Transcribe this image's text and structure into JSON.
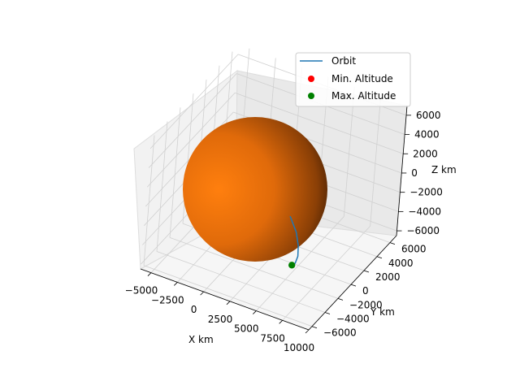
{
  "chart_data": {
    "type": "3d-line",
    "title": "",
    "xlabel": "X km",
    "ylabel": "Y km",
    "zlabel": "Z km",
    "xlim": [
      -6000,
      10000
    ],
    "ylim": [
      -6500,
      7000
    ],
    "zlim": [
      -6500,
      7000
    ],
    "xticks": [
      -5000,
      -2500,
      0,
      2500,
      5000,
      7500,
      10000
    ],
    "yticks": [
      -6000,
      -4000,
      -2000,
      0,
      2000,
      4000,
      6000
    ],
    "zticks": [
      -6000,
      -4000,
      -2000,
      0,
      2000,
      4000,
      6000
    ],
    "xtick_labels": [
      "−5000",
      "−2500",
      "0",
      "2500",
      "5000",
      "7500",
      "10000"
    ],
    "ytick_labels": [
      "−6000",
      "−4000",
      "−2000",
      "0",
      "2000",
      "4000",
      "6000"
    ],
    "ztick_labels": [
      "−6000",
      "−4000",
      "−2000",
      "0",
      "2000",
      "4000",
      "6000"
    ],
    "grid": true,
    "legend_position": "upper-right",
    "legend": [
      {
        "label": "Orbit",
        "marker": "line",
        "color": "#1f77b4"
      },
      {
        "label": "Min. Altitude",
        "marker": "circle",
        "color": "#ff0000"
      },
      {
        "label": "Max. Altitude",
        "marker": "circle",
        "color": "#008000"
      }
    ],
    "planet": {
      "radius_km": 6378,
      "color": "#ff7f0e",
      "center": [
        0,
        0,
        0
      ]
    },
    "orbit_points": [
      {
        "x": 5400,
        "y": -2800,
        "z": 800
      },
      {
        "x": 6300,
        "y": -3200,
        "z": -200
      },
      {
        "x": 6700,
        "y": -3400,
        "z": -1300
      },
      {
        "x": 6800,
        "y": -3500,
        "z": -2300
      },
      {
        "x": 6600,
        "y": -3500,
        "z": -3100
      },
      {
        "x": 6200,
        "y": -3300,
        "z": -3600
      }
    ],
    "max_altitude_point": {
      "x": 6200,
      "y": -3300,
      "z": -3600
    },
    "min_altitude_point": null
  }
}
